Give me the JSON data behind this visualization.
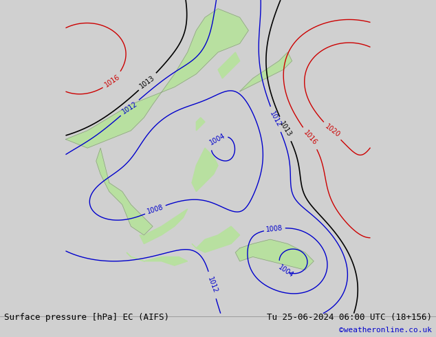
{
  "title_left": "Surface pressure [hPa] EC (AIFS)",
  "title_right": "Tu 25-06-2024 06:00 UTC (18+156)",
  "copyright": "©weatheronline.co.uk",
  "bg_color": "#d8d8d8",
  "land_color": "#b8e0a0",
  "sea_color": "#e8e8e8",
  "contour_blue": "#0000cc",
  "contour_red": "#cc0000",
  "contour_black": "#000000",
  "label_fontsize": 7,
  "footer_fontsize": 9
}
